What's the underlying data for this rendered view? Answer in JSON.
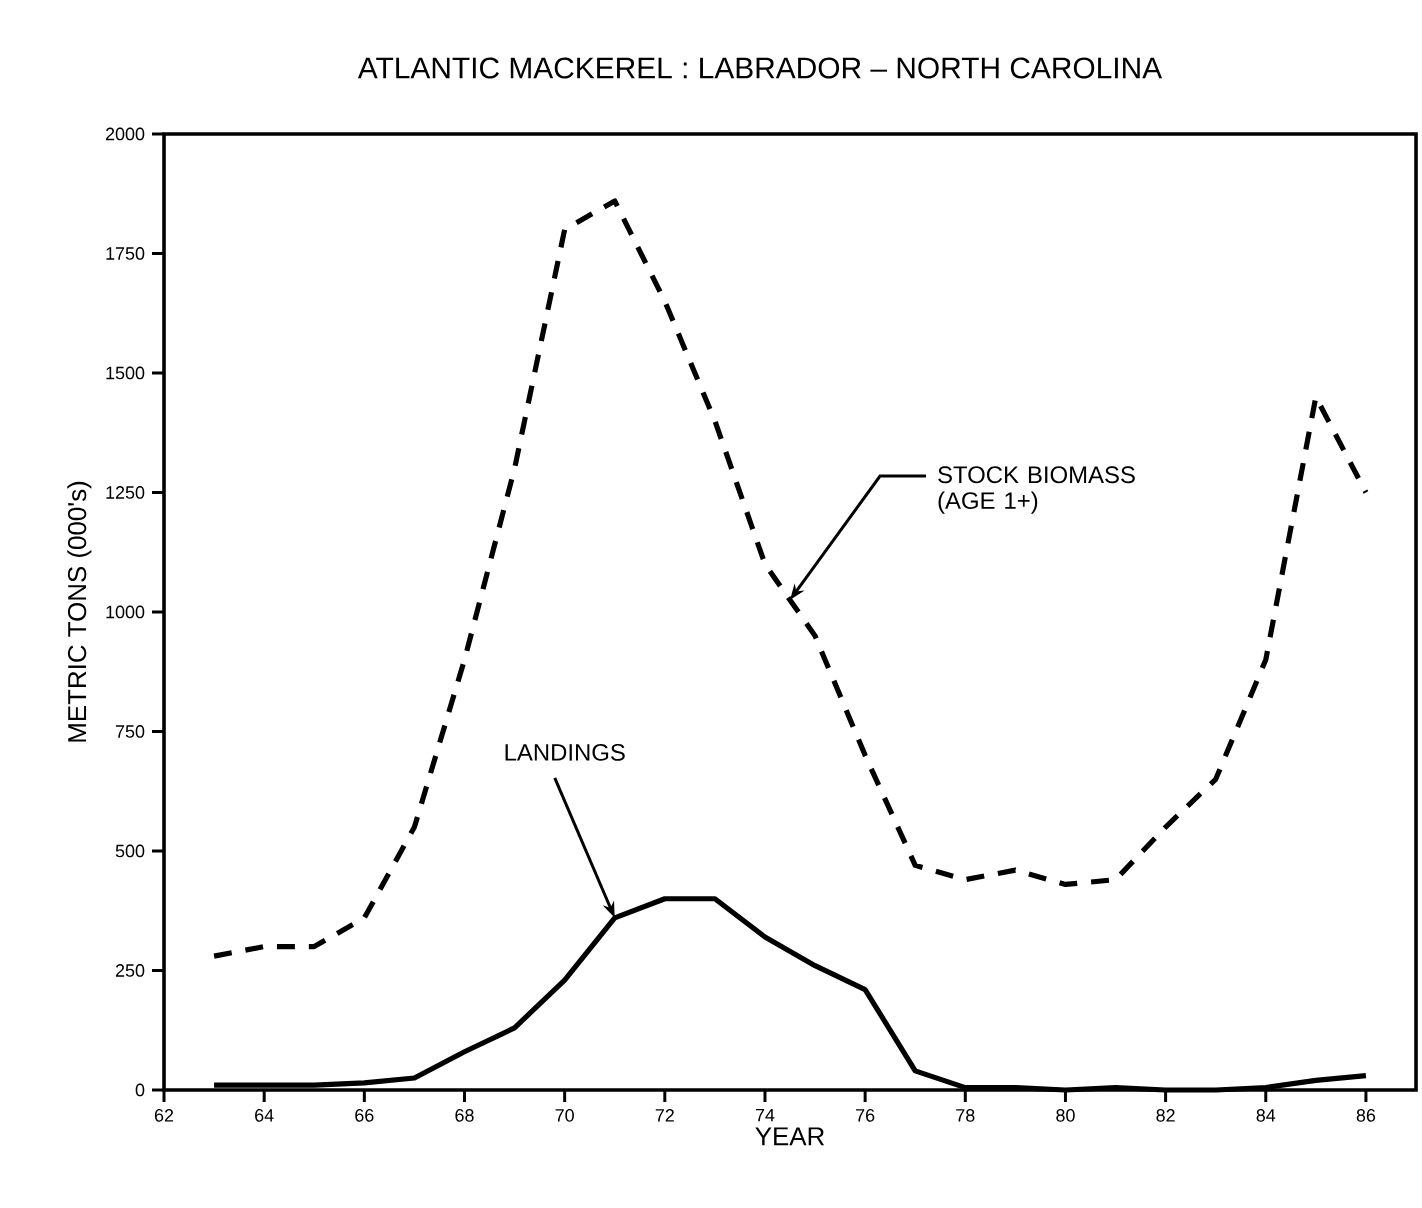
{
  "chart_data": {
    "type": "line",
    "title": "ATLANTIC MACKEREL : LABRADOR – NORTH CAROLINA",
    "xlabel": "YEAR",
    "ylabel": "METRIC TONS (000's)",
    "x": [
      63,
      64,
      65,
      66,
      67,
      68,
      69,
      70,
      71,
      72,
      73,
      74,
      75,
      76,
      77,
      78,
      79,
      80,
      81,
      82,
      83,
      84,
      85,
      86
    ],
    "series": [
      {
        "color": "#000000",
        "line_style": "dashed",
        "values": [
          280,
          300,
          300,
          360,
          550,
          900,
          1300,
          1800,
          1860,
          1650,
          1400,
          1100,
          950,
          700,
          470,
          440,
          460,
          430,
          440,
          550,
          650,
          900,
          1450,
          1250
        ]
      },
      {
        "color": "#000000",
        "line_style": "solid",
        "values": [
          10,
          10,
          10,
          15,
          25,
          80,
          130,
          230,
          360,
          400,
          400,
          320,
          260,
          210,
          40,
          5,
          5,
          0,
          5,
          0,
          0,
          5,
          20,
          30
        ]
      }
    ],
    "xlim": [
      62,
      87
    ],
    "ylim": [
      0,
      2000
    ],
    "xticks": [
      62,
      64,
      66,
      68,
      70,
      72,
      74,
      76,
      78,
      80,
      82,
      84,
      86
    ],
    "yticks": [
      0,
      250,
      500,
      750,
      1000,
      1250,
      1500,
      1750,
      2000
    ],
    "marker": "none",
    "annotations": [
      {
        "text": "STOCK BIOMASS (AGE 1+)",
        "x": 74.5,
        "y": 1025
      },
      {
        "text": "LANDINGS",
        "x": 71,
        "y": 360
      }
    ]
  }
}
